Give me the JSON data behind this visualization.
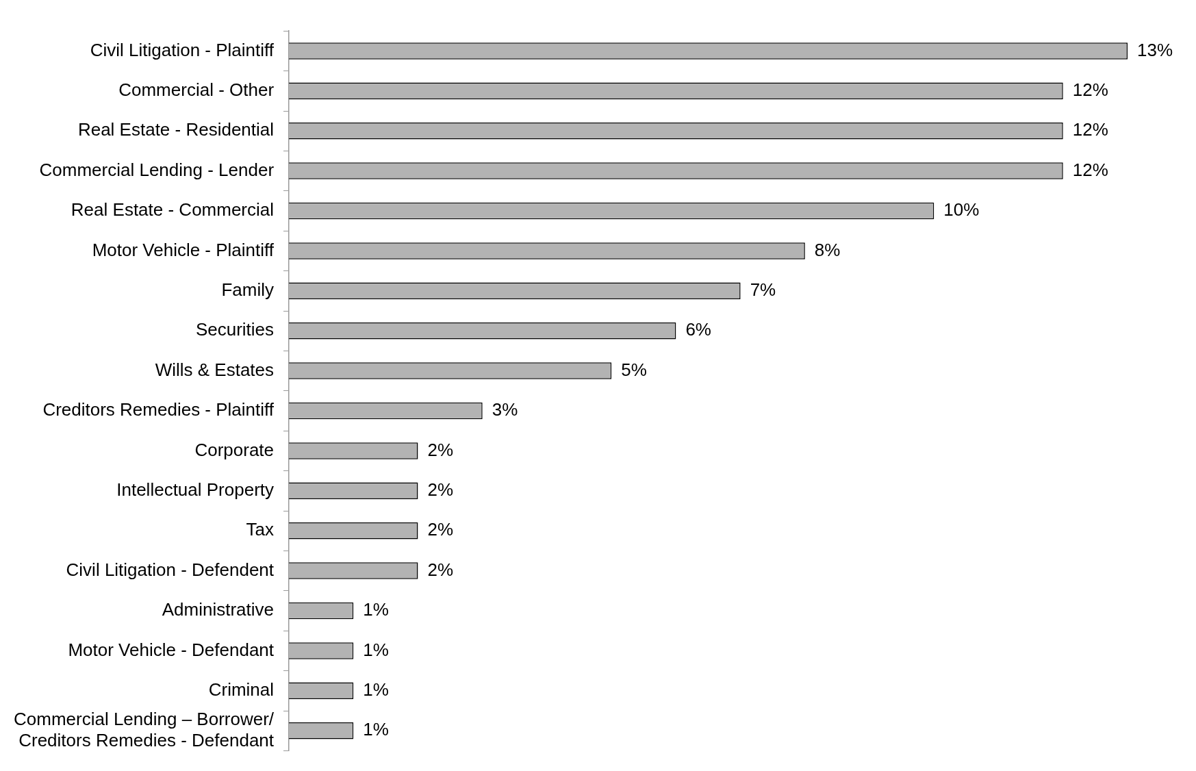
{
  "chart_data": {
    "type": "bar",
    "orientation": "horizontal",
    "categories": [
      "Civil Litigation - Plaintiff",
      "Commercial - Other",
      "Real Estate - Residential",
      "Commercial Lending - Lender",
      "Real Estate - Commercial",
      "Motor Vehicle - Plaintiff",
      "Family",
      "Securities",
      "Wills & Estates",
      "Creditors Remedies - Plaintiff",
      "Corporate",
      "Intellectual Property",
      "Tax",
      "Civil Litigation - Defendent",
      "Administrative",
      "Motor Vehicle - Defendant",
      "Criminal",
      "Commercial Lending – Borrower/ Creditors Remedies - Defendant"
    ],
    "values": [
      13,
      12,
      12,
      12,
      10,
      8,
      7,
      6,
      5,
      3,
      2,
      2,
      2,
      2,
      1,
      1,
      1,
      1
    ],
    "color": "#b3b3b3",
    "value_labels": [
      "13%",
      "12%",
      "12%",
      "12%",
      "10%",
      "8%",
      "7%",
      "6%",
      "5%",
      "3%",
      "2%",
      "2%",
      "2%",
      "2%",
      "1%",
      "1%",
      "1%",
      "1%"
    ],
    "grid": false,
    "legend": false
  }
}
